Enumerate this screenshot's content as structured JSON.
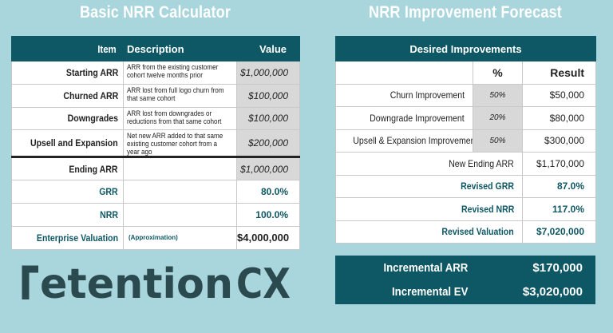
{
  "calculator": {
    "title": "Basic NRR Calculator",
    "headers": {
      "item": "Item",
      "description": "Description",
      "value": "Value"
    },
    "rows": [
      {
        "item": "Starting ARR",
        "description": "ARR from the existing customer cohort twelve months prior",
        "value": "$1,000,000"
      },
      {
        "item": "Churned ARR",
        "description": "ARR lost from full logo churn from that same cohort",
        "value": "$100,000"
      },
      {
        "item": "Downgrades",
        "description": "ARR lost from downgrades or reductions from that same cohort",
        "value": "$100,000"
      },
      {
        "item": "Upsell and Expansion",
        "description": "Net new ARR added to that same existing customer cohort from a year ago",
        "value": "$200,000"
      }
    ],
    "ending": {
      "item": "Ending ARR",
      "value": "$1,000,000"
    },
    "grr": {
      "item": "GRR",
      "value": "80.0%"
    },
    "nrr": {
      "item": "NRR",
      "value": "100.0%"
    },
    "valuation": {
      "item": "Enterprise Valuation",
      "note": "(Approximation)",
      "value": "$4,000,000"
    }
  },
  "forecast": {
    "title": "NRR Improvement Forecast",
    "header": "Desired Improvements",
    "col_pct": "%",
    "col_result": "Result",
    "rows": [
      {
        "item": "Churn Improvement",
        "pct": "50%",
        "result": "$50,000"
      },
      {
        "item": "Downgrade Improvement",
        "pct": "20%",
        "result": "$80,000"
      },
      {
        "item": "Upsell & Expansion Improvement",
        "pct": "50%",
        "result": "$300,000"
      }
    ],
    "new_ending": {
      "item": "New Ending ARR",
      "result": "$1,170,000"
    },
    "revised_grr": {
      "item": "Revised GRR",
      "result": "87.0%"
    },
    "revised_nrr": {
      "item": "Revised NRR",
      "result": "117.0%"
    },
    "revised_valuation": {
      "item": "Revised Valuation",
      "result": "$7,020,000"
    }
  },
  "incremental": {
    "arr_label": "Incremental ARR",
    "arr_value": "$170,000",
    "ev_label": "Incremental EV",
    "ev_value": "$3,020,000"
  },
  "logo": {
    "text_main": "retention",
    "text_accent": "CX"
  },
  "colors": {
    "background": "#a9d5dc",
    "teal": "#0e5764",
    "grey_cell": "#d8d8d8",
    "logo": "#2b4a4f"
  }
}
